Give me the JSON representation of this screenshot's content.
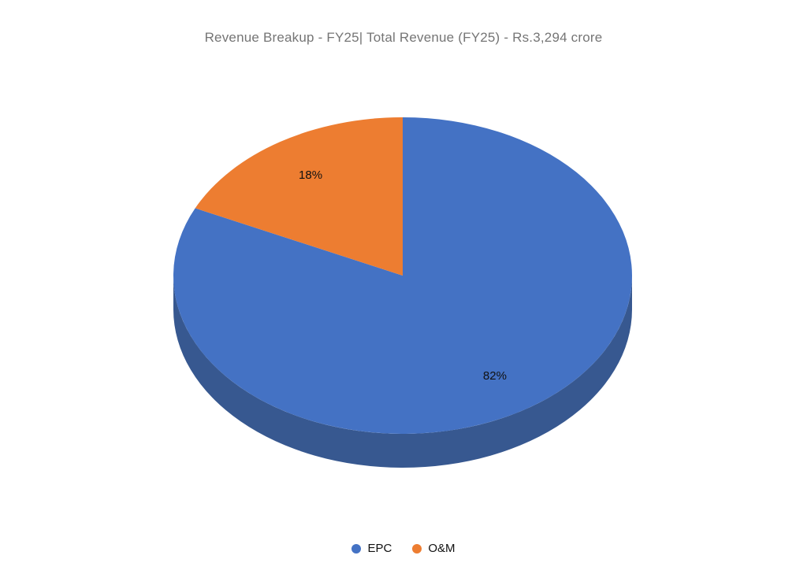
{
  "title": "Revenue Breakup - FY25| Total Revenue (FY25) - Rs.3,294 crore",
  "chart_data": {
    "type": "pie",
    "style": "3d",
    "title": "Revenue Breakup - FY25| Total Revenue (FY25) - Rs.3,294 crore",
    "total_revenue": "Rs.3,294 crore",
    "fiscal_year": "FY25",
    "categories": [
      "EPC",
      "O&M"
    ],
    "values": [
      82,
      18
    ],
    "unit": "%",
    "data_labels": [
      "82%",
      "18%"
    ],
    "slice_colors": [
      "#4472C4",
      "#ED7D31"
    ],
    "side_color": "#375890",
    "start_angle_deg": 0,
    "direction": "clockwise",
    "legend_position": "bottom"
  },
  "legend": {
    "items": [
      {
        "label": "EPC",
        "color": "#4472C4"
      },
      {
        "label": "O&M",
        "color": "#ED7D31"
      }
    ]
  },
  "colors": {
    "background": "#FFFFFF",
    "title_text": "#757575",
    "label_text": "#111111",
    "legend_text": "#111111"
  }
}
